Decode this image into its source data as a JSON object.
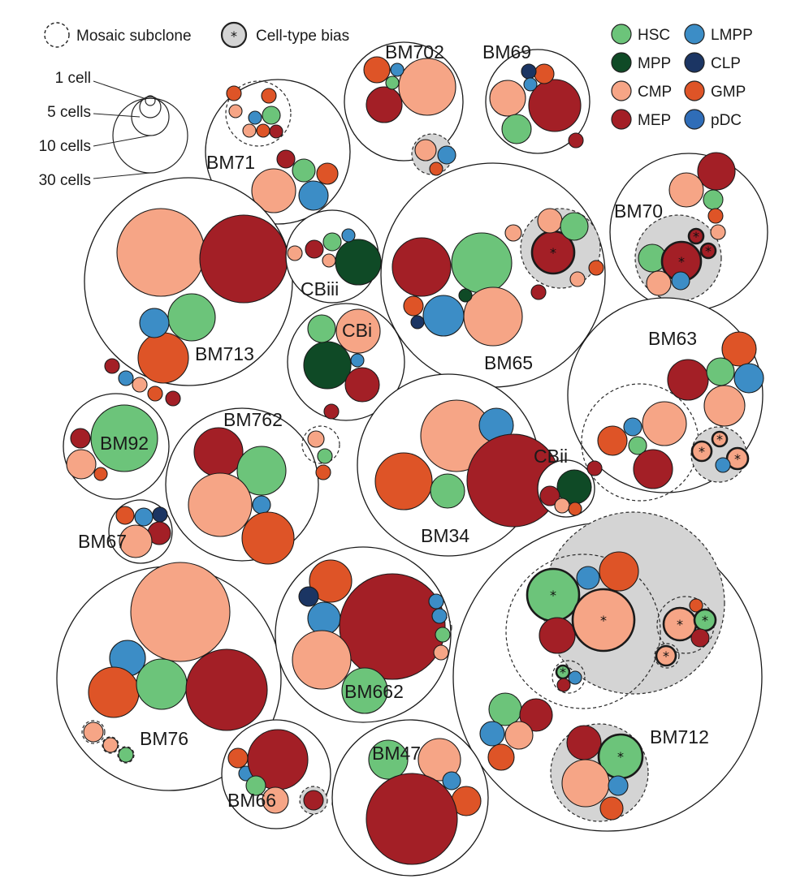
{
  "legend": {
    "mosaic_label": "Mosaic subclone",
    "bias_label": "Cell-type bias",
    "bias_symbol": "*",
    "size_scale": [
      "1 cell",
      "5 cells",
      "10 cells",
      "30 cells"
    ],
    "cell_types": [
      {
        "key": "HSC",
        "label": "HSC",
        "color": "#6cc47a"
      },
      {
        "key": "MPP",
        "label": "MPP",
        "color": "#0f4a26"
      },
      {
        "key": "CMP",
        "label": "CMP",
        "color": "#f6a586"
      },
      {
        "key": "MEP",
        "label": "MEP",
        "color": "#a31f26"
      },
      {
        "key": "LMPP",
        "label": "LMPP",
        "color": "#3c8dc6"
      },
      {
        "key": "CLP",
        "label": "CLP",
        "color": "#1b3563"
      },
      {
        "key": "GMP",
        "label": "GMP",
        "color": "#de5427"
      },
      {
        "key": "pDC",
        "label": "pDC",
        "color": "#2f6db8"
      }
    ]
  },
  "chart_data": {
    "type": "packed-circles",
    "subclone_fill": "#d4d4d4",
    "clones": [
      {
        "name": "BM71",
        "cells": [
          {
            "type": "CMP",
            "count": 8
          },
          {
            "type": "LMPP",
            "count": 3
          },
          {
            "type": "HSC",
            "count": 2
          },
          {
            "type": "GMP",
            "count": 2
          },
          {
            "type": "MEP",
            "count": 1
          },
          {
            "type": "HSC",
            "count": 1
          },
          {
            "type": "GMP",
            "count": 1
          },
          {
            "type": "LMPP",
            "count": 1
          },
          {
            "type": "CMP",
            "count": 1
          },
          {
            "type": "MEP",
            "count": 1
          },
          {
            "type": "GMP",
            "count": 1
          },
          {
            "type": "CMP",
            "count": 1
          },
          {
            "type": "GMP",
            "count": 1
          }
        ]
      },
      {
        "name": "BM702",
        "cells": [
          {
            "type": "CMP",
            "count": 10
          },
          {
            "type": "MEP",
            "count": 4
          },
          {
            "type": "GMP",
            "count": 2
          },
          {
            "type": "HSC",
            "count": 1
          },
          {
            "type": "LMPP",
            "count": 1
          },
          {
            "type": "CMP",
            "count": 1
          },
          {
            "type": "LMPP",
            "count": 1
          },
          {
            "type": "GMP",
            "count": 1
          }
        ]
      },
      {
        "name": "BM69",
        "cells": [
          {
            "type": "MEP",
            "count": 9
          },
          {
            "type": "CMP",
            "count": 4
          },
          {
            "type": "HSC",
            "count": 3
          },
          {
            "type": "GMP",
            "count": 1
          },
          {
            "type": "CLP",
            "count": 1
          },
          {
            "type": "LMPP",
            "count": 1
          },
          {
            "type": "MEP",
            "count": 1
          }
        ]
      },
      {
        "name": "BM713",
        "cells": [
          {
            "type": "CMP",
            "count": 30
          },
          {
            "type": "MEP",
            "count": 30
          },
          {
            "type": "HSC",
            "count": 6
          },
          {
            "type": "GMP",
            "count": 7
          },
          {
            "type": "LMPP",
            "count": 3
          },
          {
            "type": "MEP",
            "count": 1
          },
          {
            "type": "LMPP",
            "count": 1
          },
          {
            "type": "CMP",
            "count": 1
          },
          {
            "type": "GMP",
            "count": 1
          },
          {
            "type": "MEP",
            "count": 1
          }
        ]
      },
      {
        "name": "CBiii",
        "cells": [
          {
            "type": "MPP",
            "count": 6
          },
          {
            "type": "MEP",
            "count": 1
          },
          {
            "type": "HSC",
            "count": 1
          },
          {
            "type": "LMPP",
            "count": 1
          },
          {
            "type": "CMP",
            "count": 1
          },
          {
            "type": "CMP",
            "count": 1
          }
        ]
      },
      {
        "name": "BM65",
        "cells": [
          {
            "type": "MEP",
            "count": 12
          },
          {
            "type": "HSC",
            "count": 11
          },
          {
            "type": "CMP",
            "count": 12
          },
          {
            "type": "LMPP",
            "count": 6
          },
          {
            "type": "GMP",
            "count": 1
          },
          {
            "type": "MPP",
            "count": 1
          },
          {
            "type": "CLP",
            "count": 1
          },
          {
            "type": "MEP",
            "count": 5,
            "bias": true
          },
          {
            "type": "CMP",
            "count": 2
          },
          {
            "type": "HSC",
            "count": 3
          },
          {
            "type": "CMP",
            "count": 1
          },
          {
            "type": "CMP",
            "count": 1
          },
          {
            "type": "GMP",
            "count": 1
          },
          {
            "type": "MEP",
            "count": 1
          }
        ]
      },
      {
        "name": "BM70",
        "cells": [
          {
            "type": "MEP",
            "count": 5
          },
          {
            "type": "CMP",
            "count": 4
          },
          {
            "type": "HSC",
            "count": 1
          },
          {
            "type": "GMP",
            "count": 1
          },
          {
            "type": "HSC",
            "count": 3
          },
          {
            "type": "MEP",
            "count": 5,
            "bias": true
          },
          {
            "type": "CMP",
            "count": 3
          },
          {
            "type": "LMPP",
            "count": 1
          },
          {
            "type": "MEP",
            "count": 1,
            "bias": true
          },
          {
            "type": "MEP",
            "count": 1,
            "bias": true
          },
          {
            "type": "CMP",
            "count": 1
          }
        ]
      },
      {
        "name": "CBi",
        "cells": [
          {
            "type": "CMP",
            "count": 4
          },
          {
            "type": "MPP",
            "count": 7
          },
          {
            "type": "HSC",
            "count": 2
          },
          {
            "type": "MEP",
            "count": 4
          },
          {
            "type": "LMPP",
            "count": 1
          },
          {
            "type": "MEP",
            "count": 1
          }
        ]
      },
      {
        "name": "BM63",
        "cells": [
          {
            "type": "GMP",
            "count": 4
          },
          {
            "type": "MEP",
            "count": 6
          },
          {
            "type": "HSC",
            "count": 3
          },
          {
            "type": "LMPP",
            "count": 3
          },
          {
            "type": "CMP",
            "count": 5
          },
          {
            "type": "CMP",
            "count": 6
          },
          {
            "type": "GMP",
            "count": 3
          },
          {
            "type": "LMPP",
            "count": 1
          },
          {
            "type": "HSC",
            "count": 1
          },
          {
            "type": "MEP",
            "count": 4
          },
          {
            "type": "CMP",
            "count": 1,
            "bias": true
          },
          {
            "type": "CMP",
            "count": 1,
            "bias": true
          },
          {
            "type": "CMP",
            "count": 1,
            "bias": true
          },
          {
            "type": "LMPP",
            "count": 1
          }
        ]
      },
      {
        "name": "BM92",
        "cells": [
          {
            "type": "HSC",
            "count": 21
          },
          {
            "type": "MEP",
            "count": 1
          },
          {
            "type": "CMP",
            "count": 3
          },
          {
            "type": "GMP",
            "count": 1
          }
        ]
      },
      {
        "name": "BM762",
        "cells": [
          {
            "type": "MEP",
            "count": 6
          },
          {
            "type": "HSC",
            "count": 7
          },
          {
            "type": "CMP",
            "count": 12
          },
          {
            "type": "LMPP",
            "count": 1
          },
          {
            "type": "GMP",
            "count": 8
          },
          {
            "type": "CMP",
            "count": 1
          },
          {
            "type": "HSC",
            "count": 1
          },
          {
            "type": "GMP",
            "count": 1
          },
          {
            "type": "MEP",
            "count": 1
          }
        ]
      },
      {
        "name": "BM34",
        "cells": [
          {
            "type": "CMP",
            "count": 15
          },
          {
            "type": "LMPP",
            "count": 4
          },
          {
            "type": "GMP",
            "count": 10
          },
          {
            "type": "HSC",
            "count": 4
          },
          {
            "type": "MEP",
            "count": 30
          }
        ]
      },
      {
        "name": "CBii",
        "cells": [
          {
            "type": "MPP",
            "count": 4
          },
          {
            "type": "MEP",
            "count": 1
          },
          {
            "type": "CMP",
            "count": 1
          },
          {
            "type": "GMP",
            "count": 1
          },
          {
            "type": "MEP",
            "count": 1
          }
        ]
      },
      {
        "name": "BM67",
        "cells": [
          {
            "type": "GMP",
            "count": 1
          },
          {
            "type": "LMPP",
            "count": 1
          },
          {
            "type": "CLP",
            "count": 1
          },
          {
            "type": "MEP",
            "count": 2
          },
          {
            "type": "CMP",
            "count": 3
          }
        ]
      },
      {
        "name": "BM76",
        "cells": [
          {
            "type": "CMP",
            "count": 30
          },
          {
            "type": "LMPP",
            "count": 4
          },
          {
            "type": "GMP",
            "count": 7
          },
          {
            "type": "HSC",
            "count": 7
          },
          {
            "type": "MEP",
            "count": 20
          },
          {
            "type": "CMP",
            "count": 1
          },
          {
            "type": "CMP",
            "count": 1
          },
          {
            "type": "HSC",
            "count": 1
          }
        ]
      },
      {
        "name": "BM662",
        "cells": [
          {
            "type": "GMP",
            "count": 5
          },
          {
            "type": "CLP",
            "count": 1
          },
          {
            "type": "LMPP",
            "count": 3
          },
          {
            "type": "MEP",
            "count": 30
          },
          {
            "type": "CMP",
            "count": 10
          },
          {
            "type": "HSC",
            "count": 6
          },
          {
            "type": "LMPP",
            "count": 1
          },
          {
            "type": "LMPP",
            "count": 1
          },
          {
            "type": "HSC",
            "count": 1
          },
          {
            "type": "CMP",
            "count": 1
          }
        ]
      },
      {
        "name": "BM712",
        "cells": [
          {
            "type": "HSC",
            "count": 8,
            "bias": true
          },
          {
            "type": "LMPP",
            "count": 1
          },
          {
            "type": "GMP",
            "count": 4
          },
          {
            "type": "MEP",
            "count": 4
          },
          {
            "type": "CMP",
            "count": 10,
            "bias": true
          },
          {
            "type": "CMP",
            "count": 2,
            "bias": true
          },
          {
            "type": "GMP",
            "count": 1
          },
          {
            "type": "HSC",
            "count": 1,
            "bias": true
          },
          {
            "type": "MEP",
            "count": 1
          },
          {
            "type": "CMP",
            "count": 1,
            "bias": true
          },
          {
            "type": "HSC",
            "count": 1,
            "bias": true
          },
          {
            "type": "LMPP",
            "count": 1
          },
          {
            "type": "MEP",
            "count": 1
          },
          {
            "type": "HSC",
            "count": 3
          },
          {
            "type": "MEP",
            "count": 3
          },
          {
            "type": "LMPP",
            "count": 2
          },
          {
            "type": "CMP",
            "count": 2
          },
          {
            "type": "GMP",
            "count": 2
          },
          {
            "type": "MEP",
            "count": 3
          },
          {
            "type": "HSC",
            "count": 6,
            "bias": true
          },
          {
            "type": "CMP",
            "count": 6
          },
          {
            "type": "LMPP",
            "count": 1
          },
          {
            "type": "GMP",
            "count": 2
          }
        ]
      },
      {
        "name": "BM66",
        "cells": [
          {
            "type": "GMP",
            "count": 1
          },
          {
            "type": "LMPP",
            "count": 1
          },
          {
            "type": "MEP",
            "count": 7
          },
          {
            "type": "HSC",
            "count": 1
          },
          {
            "type": "CMP",
            "count": 1
          },
          {
            "type": "MEP",
            "count": 1
          },
          {
            "type": "CMP",
            "count": 1
          }
        ]
      },
      {
        "name": "BM47",
        "cells": [
          {
            "type": "HSC",
            "count": 3
          },
          {
            "type": "CMP",
            "count": 5
          },
          {
            "type": "LMPP",
            "count": 1
          },
          {
            "type": "GMP",
            "count": 2
          },
          {
            "type": "MEP",
            "count": 30
          }
        ]
      }
    ]
  }
}
